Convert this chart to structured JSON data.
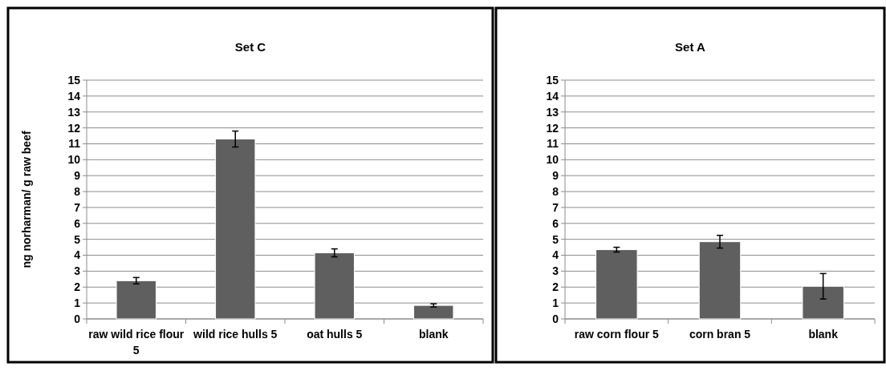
{
  "chart_data": [
    {
      "type": "bar",
      "title": "Set C",
      "ylabel": "ng norharman/ g raw beef",
      "categories": [
        "raw wild rice flour 5",
        "wild rice hulls 5",
        "oat hulls 5",
        "blank"
      ],
      "values": [
        2.4,
        11.3,
        4.15,
        0.85
      ],
      "errors": [
        0.2,
        0.5,
        0.25,
        0.1
      ],
      "color": "#5f5f5f",
      "ylim": [
        0,
        15
      ],
      "yticks": [
        0,
        1,
        2,
        3,
        4,
        5,
        6,
        7,
        8,
        9,
        10,
        11,
        12,
        13,
        14,
        15
      ],
      "grid": "y"
    },
    {
      "type": "bar",
      "title": "Set A",
      "categories": [
        "raw corn flour 5",
        "corn bran 5",
        "blank"
      ],
      "values": [
        4.35,
        4.85,
        2.05
      ],
      "errors": [
        0.15,
        0.4,
        0.8
      ],
      "color": "#5f5f5f",
      "ylim": [
        0,
        15
      ],
      "yticks": [
        0,
        1,
        2,
        3,
        4,
        5,
        6,
        7,
        8,
        9,
        10,
        11,
        12,
        13,
        14,
        15
      ],
      "grid": "y"
    }
  ]
}
